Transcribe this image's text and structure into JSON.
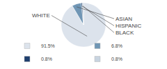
{
  "chart_data": {
    "type": "pie",
    "categories": [
      "WHITE",
      "ASIAN",
      "HISPANIC",
      "BLACK"
    ],
    "values": [
      91.5,
      6.8,
      0.8,
      0.8
    ],
    "value_labels": [
      "91.5%",
      "6.8%",
      "0.8%",
      "0.8%"
    ],
    "colors": [
      "#dce3ec",
      "#7096b5",
      "#1f3f6e",
      "#c8d4e0"
    ],
    "legend": "bottom"
  }
}
